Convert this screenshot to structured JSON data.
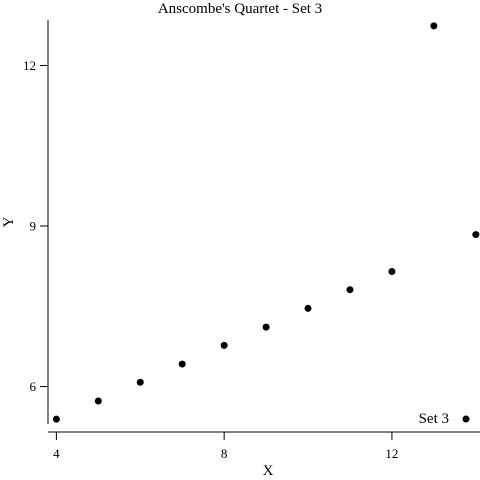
{
  "chart_data": {
    "type": "scatter",
    "title": "Anscombe's Quartet - Set 3",
    "xlabel": "X",
    "ylabel": "Y",
    "xlim": [
      3.8,
      14.1
    ],
    "ylim": [
      5.3,
      12.85
    ],
    "xticks": [
      4,
      8,
      12
    ],
    "yticks": [
      6,
      9,
      12
    ],
    "legend_position": "bottom-right",
    "marker_color": "#000000",
    "series": [
      {
        "name": "Set 3",
        "points": [
          {
            "x": 4,
            "y": 5.39
          },
          {
            "x": 5,
            "y": 5.73
          },
          {
            "x": 6,
            "y": 6.08
          },
          {
            "x": 7,
            "y": 6.42
          },
          {
            "x": 8,
            "y": 6.77
          },
          {
            "x": 9,
            "y": 7.11
          },
          {
            "x": 10,
            "y": 7.46
          },
          {
            "x": 11,
            "y": 7.81
          },
          {
            "x": 12,
            "y": 8.15
          },
          {
            "x": 13,
            "y": 12.74
          },
          {
            "x": 14,
            "y": 8.84
          }
        ]
      }
    ]
  }
}
